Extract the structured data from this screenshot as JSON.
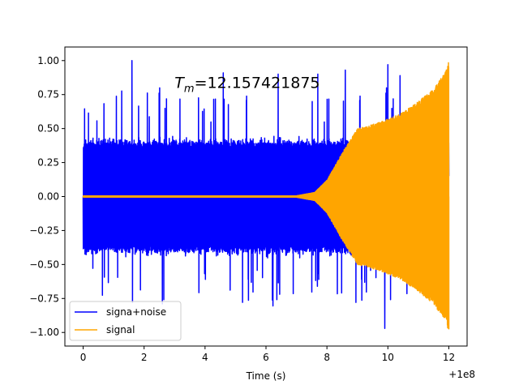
{
  "chart_data": {
    "type": "line",
    "title": "",
    "xlabel": "Time (s)",
    "ylabel": "",
    "x_offset_label": "+1e8",
    "xlim": [
      -0.6,
      12.6
    ],
    "ylim": [
      -1.1,
      1.1
    ],
    "x_ticks": [
      0,
      2,
      4,
      6,
      8,
      10,
      12
    ],
    "x_tick_labels": [
      "0",
      "2",
      "4",
      "6",
      "8",
      "10",
      "12"
    ],
    "y_ticks": [
      -1.0,
      -0.75,
      -0.5,
      -0.25,
      0.0,
      0.25,
      0.5,
      0.75,
      1.0
    ],
    "y_tick_labels": [
      "−1.00",
      "−0.75",
      "−0.50",
      "−0.25",
      "0.00",
      "0.25",
      "0.50",
      "0.75",
      "1.00"
    ],
    "grid": false,
    "legend_position": "lower-left",
    "annotation": {
      "text_prefix": "T",
      "text_subscript": "m",
      "text_value": "=12.157421875",
      "x": 3.0,
      "y": 0.8
    },
    "series": [
      {
        "name": "signa+noise",
        "color": "#0000ff",
        "description": "noise band ~±0.5 with spikes up to ±1.0 over x 0–12",
        "x": [
          0,
          1.6,
          1.62,
          2.6,
          4.6,
          6.4,
          7.7,
          8.6,
          9.9,
          10.0,
          10.4,
          12.0
        ],
        "y": [
          0,
          1.0,
          -0.78,
          -0.79,
          0.91,
          0.9,
          0.9,
          0.93,
          -0.97,
          0.97,
          0.89,
          0.15
        ]
      },
      {
        "name": "signal",
        "color": "#ffa500",
        "description": "chirp; amplitude ~0 until x≈7, grows to 0.52 at x≈9.2, reaches 1.0 at x≈12.16",
        "x": [
          0,
          7.0,
          7.6,
          8.0,
          8.5,
          9.0,
          9.5,
          10.0,
          10.5,
          11.0,
          11.5,
          11.9,
          12.0
        ],
        "y": [
          0.005,
          0.005,
          0.03,
          0.12,
          0.32,
          0.5,
          0.53,
          0.57,
          0.62,
          0.7,
          0.79,
          0.92,
          1.0
        ]
      }
    ]
  }
}
